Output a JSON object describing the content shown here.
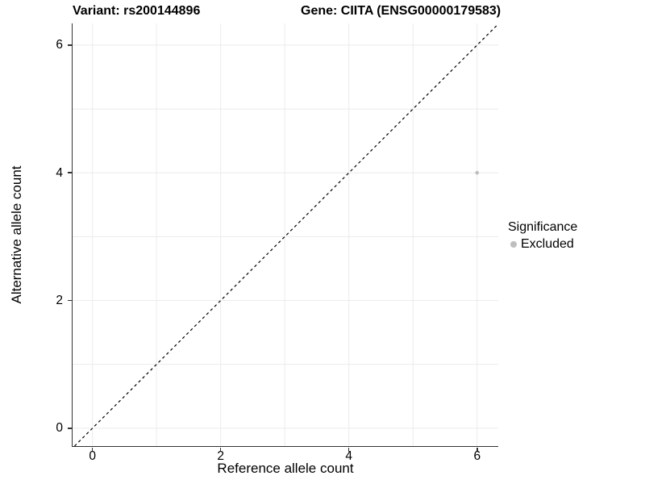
{
  "titles": {
    "variant": "Variant: rs200144896",
    "gene": "Gene: CIITA (ENSG00000179583)"
  },
  "chart_data": {
    "type": "scatter",
    "title_left": "Variant: rs200144896",
    "title_right": "Gene: CIITA (ENSG00000179583)",
    "xlabel": "Reference allele count",
    "ylabel": "Alternative allele count",
    "xlim": [
      -0.31,
      6.33
    ],
    "ylim": [
      -0.28,
      6.34
    ],
    "x_ticks": [
      0,
      2,
      4,
      6
    ],
    "y_ticks": [
      0,
      2,
      4,
      6
    ],
    "gridlines_x": [
      0,
      1,
      2,
      3,
      4,
      5,
      6
    ],
    "gridlines_y": [
      0,
      1,
      2,
      3,
      4,
      5,
      6
    ],
    "grid": true,
    "points": [
      {
        "x": 6,
        "y": 4,
        "series": "Excluded"
      }
    ],
    "identity_line": {
      "equation": "y = x",
      "style": "dashed"
    },
    "legend": {
      "title": "Significance",
      "position": "right",
      "items": [
        {
          "label": "Excluded",
          "color": "#bebebe"
        }
      ]
    }
  },
  "colors": {
    "background": "#ffffff",
    "grid": "#ebebeb",
    "axis": "#333333",
    "point": "#bebebe",
    "identity_line": "#000000",
    "text": "#000000"
  }
}
